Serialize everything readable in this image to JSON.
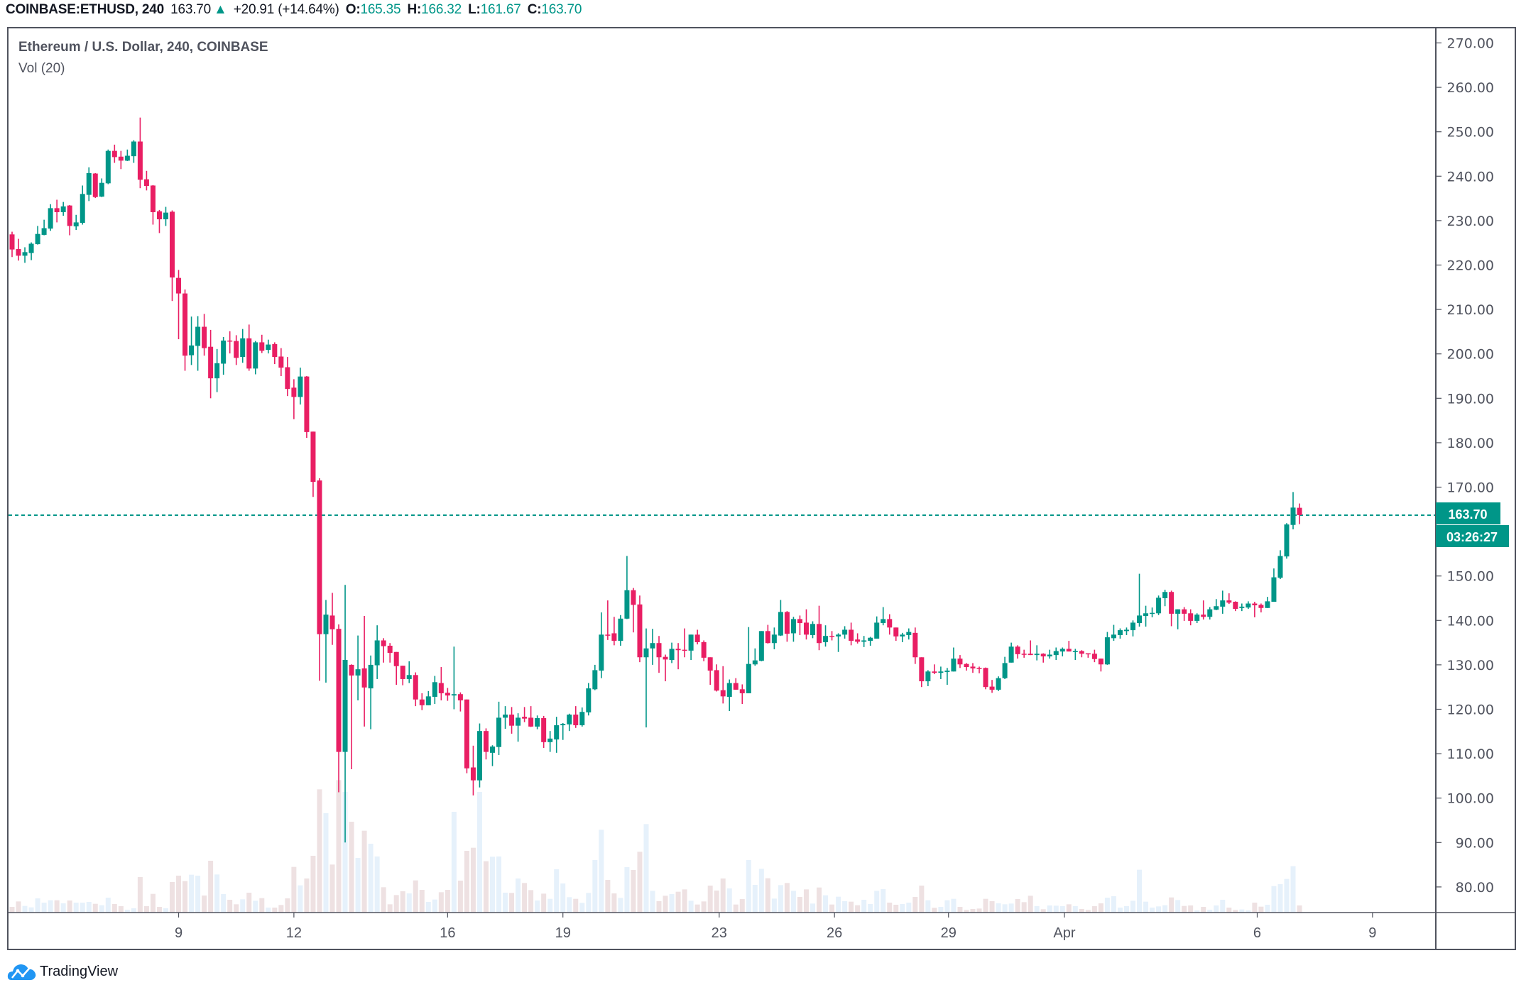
{
  "header": {
    "symbol": "COINBASE:ETHUSD, 240",
    "last": "163.70",
    "arrow": "▲",
    "change": "+20.91 (+14.64%)",
    "o_label": "O:",
    "o_value": "165.35",
    "h_label": "H:",
    "h_value": "166.32",
    "l_label": "L:",
    "l_value": "161.67",
    "c_label": "C:",
    "c_value": "163.70"
  },
  "legend": {
    "title": "Ethereum / U.S. Dollar, 240, COINBASE",
    "indicator": "Vol (20)"
  },
  "price_tag": {
    "value": "163.70",
    "countdown": "03:26:27"
  },
  "brand": {
    "name": "TradingView"
  },
  "colors": {
    "up": "#009688",
    "down": "#e91e63",
    "vol_up": "#e6f1fb",
    "vol_down": "#eee1e2",
    "frame": "#50535e",
    "text": "#50535e"
  },
  "chart_data": {
    "type": "candlestick",
    "title": "Ethereum / U.S. Dollar, 240, COINBASE",
    "ylim": [
      73,
      273
    ],
    "y_ticks": [
      "270.00",
      "260.00",
      "250.00",
      "240.00",
      "230.00",
      "220.00",
      "210.00",
      "200.00",
      "190.00",
      "180.00",
      "170.00",
      "150.00",
      "140.00",
      "130.00",
      "120.00",
      "110.00",
      "100.00",
      "90.00",
      "80.00"
    ],
    "y_tick_values": [
      270,
      260,
      250,
      240,
      230,
      220,
      210,
      200,
      190,
      180,
      170,
      150,
      140,
      130,
      120,
      110,
      100,
      90,
      80
    ],
    "x_ticks": [
      "9",
      "12",
      "16",
      "19",
      "23",
      "26",
      "29",
      "Apr",
      "6",
      "9"
    ],
    "last_price_line": 163.7,
    "grid": false,
    "ohlc_fields": [
      "open",
      "high",
      "low",
      "close"
    ],
    "ohlc": [
      [
        226.9,
        227.5,
        221.8,
        223.5
      ],
      [
        223.6,
        225.9,
        221.0,
        222.1
      ],
      [
        222.1,
        224.0,
        220.5,
        222.9
      ],
      [
        222.7,
        225.1,
        221.1,
        224.8
      ],
      [
        224.7,
        228.8,
        224.6,
        227.0
      ],
      [
        226.8,
        230.2,
        226.7,
        228.3
      ],
      [
        228.2,
        233.7,
        227.7,
        232.8
      ],
      [
        232.8,
        234.7,
        229.6,
        231.9
      ],
      [
        231.9,
        234.2,
        231.1,
        233.2
      ],
      [
        233.4,
        233.5,
        226.7,
        228.8
      ],
      [
        228.7,
        231.3,
        227.9,
        229.6
      ],
      [
        229.5,
        237.9,
        229.1,
        236.0
      ],
      [
        235.8,
        242.0,
        234.4,
        240.7
      ],
      [
        240.6,
        240.7,
        235.1,
        235.3
      ],
      [
        235.4,
        239.5,
        235.3,
        238.5
      ],
      [
        238.4,
        246.0,
        238.2,
        245.7
      ],
      [
        245.7,
        247.1,
        243.0,
        244.3
      ],
      [
        244.4,
        245.7,
        241.6,
        243.5
      ],
      [
        243.5,
        246.0,
        243.4,
        244.6
      ],
      [
        244.5,
        248.1,
        243.0,
        247.8
      ],
      [
        247.8,
        253.2,
        237.3,
        239.2
      ],
      [
        239.3,
        241.2,
        236.8,
        237.8
      ],
      [
        237.9,
        238.0,
        229.1,
        231.9
      ],
      [
        232.1,
        232.4,
        227.2,
        230.3
      ],
      [
        230.3,
        233.1,
        228.8,
        231.8
      ],
      [
        232.0,
        232.3,
        211.9,
        217.2
      ],
      [
        217.1,
        218.9,
        203.3,
        213.6
      ],
      [
        213.6,
        214.5,
        196.2,
        199.6
      ],
      [
        199.7,
        208.4,
        197.5,
        201.9
      ],
      [
        201.8,
        208.5,
        196.2,
        206.1
      ],
      [
        206.1,
        209.0,
        199.6,
        201.3
      ],
      [
        201.6,
        205.4,
        190.0,
        194.5
      ],
      [
        194.5,
        201.1,
        191.4,
        197.9
      ],
      [
        197.8,
        203.8,
        195.3,
        203.0
      ],
      [
        203.0,
        205.1,
        200.1,
        202.8
      ],
      [
        202.9,
        204.2,
        197.5,
        199.1
      ],
      [
        199.3,
        205.6,
        198.0,
        203.5
      ],
      [
        203.5,
        206.6,
        196.2,
        196.7
      ],
      [
        196.7,
        202.9,
        195.4,
        202.6
      ],
      [
        202.6,
        204.3,
        200.2,
        200.7
      ],
      [
        200.9,
        203.2,
        200.1,
        202.1
      ],
      [
        202.2,
        202.6,
        197.7,
        199.3
      ],
      [
        199.4,
        201.3,
        195.0,
        196.9
      ],
      [
        197.0,
        199.3,
        190.5,
        192.1
      ],
      [
        192.4,
        194.3,
        185.3,
        190.3
      ],
      [
        190.3,
        196.9,
        188.6,
        194.9
      ],
      [
        194.9,
        195.0,
        181.1,
        182.4
      ],
      [
        182.5,
        182.5,
        167.8,
        171.2
      ],
      [
        171.5,
        172.0,
        126.4,
        136.9
      ],
      [
        136.9,
        144.6,
        126.0,
        141.3
      ],
      [
        141.1,
        146.2,
        134.5,
        138.0
      ],
      [
        138.1,
        139.1,
        101.3,
        110.4
      ],
      [
        110.4,
        148.0,
        90.0,
        131.1
      ],
      [
        130.0,
        130.1,
        106.5,
        127.6
      ],
      [
        127.6,
        136.6,
        122.0,
        129.0
      ],
      [
        129.2,
        141.0,
        116.1,
        124.9
      ],
      [
        124.7,
        132.1,
        115.5,
        130.0
      ],
      [
        129.9,
        138.9,
        126.8,
        135.5
      ],
      [
        135.5,
        136.0,
        130.5,
        134.2
      ],
      [
        134.3,
        134.9,
        130.5,
        132.7
      ],
      [
        132.9,
        132.9,
        125.5,
        129.7
      ],
      [
        129.8,
        129.8,
        125.4,
        126.8
      ],
      [
        126.8,
        130.8,
        125.9,
        127.7
      ],
      [
        127.7,
        128.3,
        120.7,
        122.2
      ],
      [
        122.2,
        123.6,
        119.8,
        120.9
      ],
      [
        120.9,
        124.1,
        120.9,
        122.9
      ],
      [
        122.8,
        127.5,
        121.2,
        126.1
      ],
      [
        125.9,
        129.5,
        122.0,
        123.6
      ],
      [
        123.7,
        124.8,
        121.9,
        123.1
      ],
      [
        123.1,
        134.1,
        120.0,
        123.4
      ],
      [
        123.4,
        123.8,
        119.5,
        122.0
      ],
      [
        122.2,
        122.2,
        105.6,
        106.7
      ],
      [
        106.9,
        111.8,
        100.6,
        104.0
      ],
      [
        104.0,
        116.8,
        102.4,
        115.1
      ],
      [
        115.1,
        115.7,
        108.7,
        110.4
      ],
      [
        110.2,
        111.9,
        107.2,
        111.6
      ],
      [
        111.5,
        121.7,
        109.7,
        118.1
      ],
      [
        118.1,
        120.7,
        115.6,
        118.8
      ],
      [
        118.8,
        120.5,
        114.5,
        116.3
      ],
      [
        116.3,
        119.1,
        112.7,
        118.1
      ],
      [
        118.3,
        120.5,
        117.1,
        117.9
      ],
      [
        118.1,
        120.7,
        116.0,
        116.1
      ],
      [
        116.1,
        118.6,
        115.5,
        118.0
      ],
      [
        118.0,
        118.5,
        111.3,
        112.6
      ],
      [
        112.6,
        115.1,
        110.4,
        113.4
      ],
      [
        113.2,
        118.3,
        110.2,
        116.4
      ],
      [
        116.4,
        116.9,
        113.1,
        116.7
      ],
      [
        116.6,
        119.0,
        115.1,
        118.8
      ],
      [
        118.8,
        120.7,
        115.8,
        116.4
      ],
      [
        116.4,
        120.4,
        116.1,
        119.4
      ],
      [
        119.3,
        125.9,
        118.6,
        124.7
      ],
      [
        124.5,
        130.0,
        124.3,
        128.8
      ],
      [
        128.7,
        141.8,
        127.0,
        136.8
      ],
      [
        136.8,
        144.5,
        135.6,
        136.7
      ],
      [
        137.1,
        140.8,
        134.4,
        135.4
      ],
      [
        135.4,
        141.2,
        134.3,
        140.4
      ],
      [
        140.4,
        154.5,
        140.3,
        146.8
      ],
      [
        146.8,
        147.3,
        137.3,
        143.5
      ],
      [
        143.6,
        145.6,
        130.6,
        131.7
      ],
      [
        131.7,
        138.2,
        115.9,
        133.7
      ],
      [
        133.7,
        138.1,
        130.0,
        134.9
      ],
      [
        134.9,
        136.5,
        128.2,
        131.7
      ],
      [
        131.8,
        132.3,
        126.3,
        131.2
      ],
      [
        131.1,
        135.0,
        130.4,
        133.6
      ],
      [
        133.6,
        134.9,
        129.0,
        133.3
      ],
      [
        133.4,
        138.2,
        131.7,
        133.2
      ],
      [
        133.2,
        136.8,
        131.1,
        136.8
      ],
      [
        136.8,
        137.9,
        134.6,
        135.1
      ],
      [
        135.1,
        135.5,
        130.8,
        131.6
      ],
      [
        131.7,
        131.7,
        125.5,
        128.7
      ],
      [
        128.8,
        130.1,
        124.0,
        124.2
      ],
      [
        124.3,
        129.7,
        121.3,
        122.9
      ],
      [
        122.8,
        126.7,
        119.6,
        125.9
      ],
      [
        125.9,
        127.0,
        124.4,
        124.4
      ],
      [
        124.5,
        125.6,
        121.2,
        123.6
      ],
      [
        123.6,
        138.5,
        123.6,
        130.2
      ],
      [
        130.1,
        133.7,
        129.8,
        131.0
      ],
      [
        130.9,
        137.6,
        130.8,
        137.6
      ],
      [
        137.6,
        139.0,
        134.8,
        134.9
      ],
      [
        134.9,
        138.4,
        133.5,
        136.8
      ],
      [
        136.6,
        144.6,
        136.5,
        141.9
      ],
      [
        141.9,
        142.1,
        135.2,
        137.0
      ],
      [
        137.1,
        140.8,
        135.2,
        140.3
      ],
      [
        140.3,
        141.1,
        136.7,
        139.4
      ],
      [
        139.5,
        142.5,
        135.7,
        136.8
      ],
      [
        136.7,
        139.8,
        136.0,
        139.2
      ],
      [
        139.2,
        143.3,
        133.3,
        134.9
      ],
      [
        135.1,
        138.9,
        134.1,
        136.5
      ],
      [
        136.5,
        137.6,
        135.5,
        136.4
      ],
      [
        136.4,
        137.1,
        132.9,
        136.8
      ],
      [
        136.8,
        138.7,
        135.9,
        137.9
      ],
      [
        137.9,
        139.5,
        134.4,
        135.4
      ],
      [
        135.7,
        137.1,
        134.8,
        135.2
      ],
      [
        135.2,
        136.5,
        134.0,
        135.5
      ],
      [
        135.4,
        136.3,
        134.3,
        136.1
      ],
      [
        135.9,
        140.9,
        135.9,
        139.5
      ],
      [
        139.4,
        143.0,
        138.9,
        140.3
      ],
      [
        140.3,
        141.4,
        136.8,
        138.4
      ],
      [
        138.4,
        138.4,
        135.4,
        136.4
      ],
      [
        136.4,
        137.2,
        135.1,
        136.8
      ],
      [
        136.7,
        138.2,
        135.7,
        137.4
      ],
      [
        137.2,
        138.4,
        130.2,
        131.7
      ],
      [
        131.7,
        131.7,
        125.0,
        126.3
      ],
      [
        126.3,
        128.8,
        125.2,
        128.5
      ],
      [
        128.5,
        130.1,
        127.9,
        128.2
      ],
      [
        128.2,
        129.6,
        126.8,
        128.5
      ],
      [
        128.4,
        129.3,
        125.5,
        128.7
      ],
      [
        128.5,
        133.9,
        128.5,
        131.4
      ],
      [
        131.4,
        132.2,
        129.3,
        130.1
      ],
      [
        130.2,
        130.4,
        128.7,
        129.5
      ],
      [
        129.6,
        130.4,
        128.2,
        129.2
      ],
      [
        129.3,
        129.6,
        128.1,
        129.2
      ],
      [
        129.3,
        129.4,
        124.5,
        125.0
      ],
      [
        125.1,
        126.6,
        123.7,
        124.4
      ],
      [
        124.4,
        127.4,
        124.1,
        127.0
      ],
      [
        127.0,
        131.8,
        126.8,
        130.4
      ],
      [
        130.5,
        135.0,
        130.5,
        134.1
      ],
      [
        134.1,
        134.4,
        131.4,
        132.4
      ],
      [
        132.5,
        133.4,
        131.6,
        132.3
      ],
      [
        132.5,
        135.5,
        132.2,
        132.2
      ],
      [
        132.2,
        134.4,
        131.0,
        132.5
      ],
      [
        132.5,
        132.6,
        130.5,
        131.9
      ],
      [
        131.9,
        133.4,
        131.4,
        132.3
      ],
      [
        132.2,
        133.9,
        131.1,
        133.1
      ],
      [
        133.0,
        133.9,
        131.9,
        133.6
      ],
      [
        133.6,
        135.4,
        133.0,
        133.0
      ],
      [
        133.0,
        133.6,
        131.1,
        133.1
      ],
      [
        133.1,
        133.3,
        131.7,
        132.5
      ],
      [
        132.6,
        132.6,
        131.6,
        132.4
      ],
      [
        132.5,
        133.4,
        130.6,
        131.3
      ],
      [
        131.4,
        131.4,
        128.5,
        130.1
      ],
      [
        130.1,
        137.4,
        130.0,
        136.2
      ],
      [
        136.0,
        139.0,
        135.4,
        136.8
      ],
      [
        136.7,
        138.2,
        135.9,
        137.8
      ],
      [
        137.6,
        138.4,
        136.7,
        137.9
      ],
      [
        137.8,
        140.0,
        136.4,
        139.5
      ],
      [
        139.4,
        150.5,
        138.6,
        141.1
      ],
      [
        141.0,
        143.3,
        138.6,
        141.6
      ],
      [
        141.5,
        142.9,
        140.7,
        141.7
      ],
      [
        141.6,
        145.6,
        141.2,
        145.1
      ],
      [
        145.0,
        146.9,
        143.2,
        146.4
      ],
      [
        146.4,
        146.7,
        138.7,
        141.5
      ],
      [
        141.5,
        142.5,
        138.0,
        142.5
      ],
      [
        142.5,
        143.0,
        139.9,
        141.5
      ],
      [
        141.6,
        142.5,
        138.9,
        139.9
      ],
      [
        139.9,
        141.6,
        139.4,
        141.3
      ],
      [
        141.3,
        144.5,
        140.2,
        140.8
      ],
      [
        140.8,
        143.0,
        140.2,
        142.5
      ],
      [
        142.4,
        144.8,
        142.3,
        143.2
      ],
      [
        143.1,
        146.7,
        141.5,
        144.5
      ],
      [
        144.5,
        146.1,
        143.7,
        144.0
      ],
      [
        144.2,
        144.3,
        142.1,
        142.6
      ],
      [
        142.8,
        143.8,
        142.1,
        143.1
      ],
      [
        142.9,
        144.3,
        142.6,
        143.8
      ],
      [
        143.8,
        144.2,
        140.7,
        143.4
      ],
      [
        143.5,
        143.8,
        141.8,
        142.8
      ],
      [
        142.8,
        145.3,
        142.8,
        144.3
      ],
      [
        144.2,
        151.7,
        144.2,
        149.7
      ],
      [
        149.6,
        155.8,
        149.3,
        154.5
      ],
      [
        154.4,
        161.9,
        153.9,
        161.6
      ],
      [
        161.5,
        168.9,
        160.5,
        165.4
      ],
      [
        165.35,
        166.32,
        161.67,
        163.7
      ]
    ],
    "volume_relative": [
      24,
      47,
      28,
      22,
      60,
      42,
      52,
      52,
      39,
      51,
      42,
      42,
      45,
      37,
      31,
      63,
      36,
      27,
      12,
      18,
      150,
      27,
      79,
      24,
      18,
      129,
      156,
      133,
      160,
      156,
      72,
      219,
      161,
      78,
      54,
      35,
      56,
      84,
      50,
      61,
      21,
      21,
      32,
      60,
      193,
      115,
      144,
      240,
      521,
      420,
      203,
      560,
      510,
      384,
      231,
      346,
      291,
      237,
      107,
      35,
      74,
      90,
      81,
      136,
      96,
      45,
      55,
      86,
      96,
      426,
      135,
      261,
      274,
      510,
      217,
      236,
      237,
      84,
      83,
      144,
      125,
      95,
      51,
      80,
      58,
      183,
      123,
      65,
      58,
      41,
      83,
      222,
      350,
      138,
      81,
      62,
      192,
      180,
      257,
      374,
      92,
      48,
      71,
      78,
      88,
      98,
      50,
      34,
      47,
      114,
      93,
      144,
      102,
      34,
      57,
      222,
      117,
      185,
      145,
      59,
      116,
      125,
      92,
      66,
      98,
      38,
      106,
      73,
      34,
      67,
      48,
      46,
      31,
      54,
      36,
      92,
      99,
      42,
      33,
      36,
      42,
      66,
      114,
      52,
      20,
      24,
      52,
      58,
      24,
      11,
      15,
      17,
      58,
      48,
      39,
      35,
      38,
      57,
      44,
      71,
      27,
      14,
      30,
      29,
      27,
      35,
      27,
      15,
      11,
      27,
      39,
      63,
      69,
      21,
      27,
      50,
      181,
      46,
      21,
      26,
      31,
      64,
      53,
      28,
      30,
      9,
      24,
      12,
      30,
      54,
      21,
      11,
      13,
      9,
      42,
      25,
      33,
      112,
      120,
      142,
      196,
      30
    ]
  }
}
